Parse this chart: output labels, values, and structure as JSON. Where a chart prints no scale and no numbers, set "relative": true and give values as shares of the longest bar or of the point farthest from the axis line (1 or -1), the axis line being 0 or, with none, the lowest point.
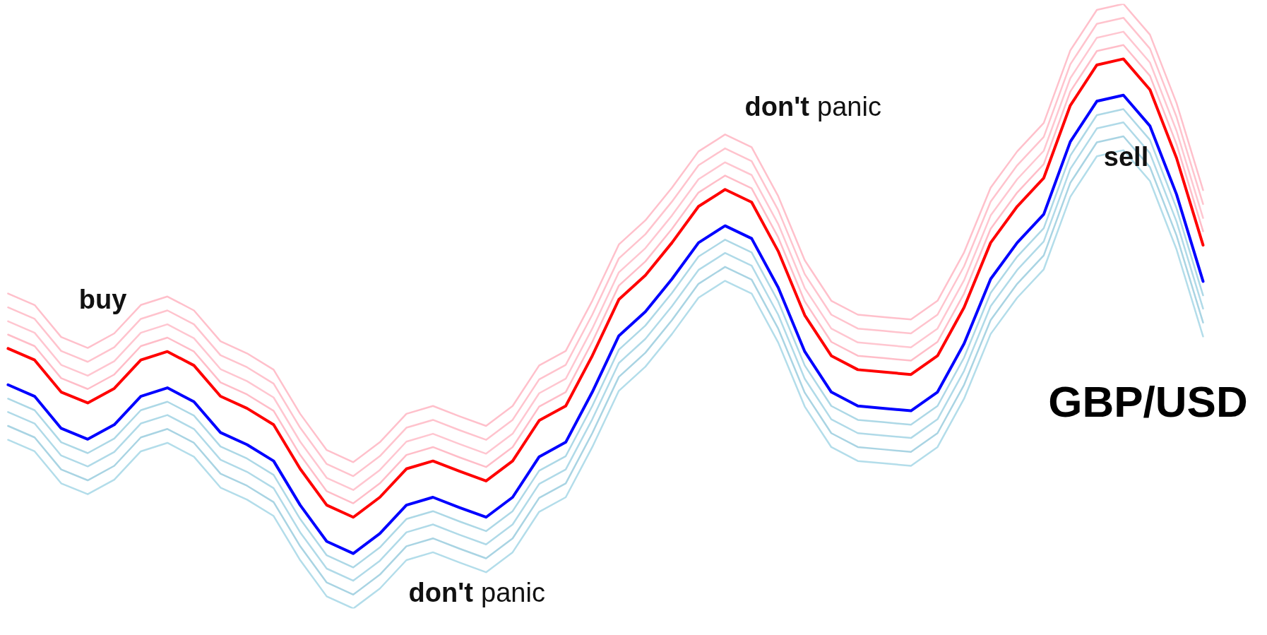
{
  "chart_data": {
    "type": "line",
    "title": "GBP/USD",
    "relative": true,
    "grid": false,
    "categories": [
      null,
      null,
      null,
      null,
      null,
      null,
      null,
      null,
      null,
      null,
      null,
      null,
      null,
      null,
      null,
      null,
      null,
      null,
      null,
      null,
      null,
      null,
      null,
      null,
      null,
      null,
      null,
      null,
      null,
      null,
      null,
      null,
      null,
      null,
      null,
      null,
      null,
      null,
      null,
      null,
      null,
      null,
      null,
      null,
      null,
      null
    ],
    "series": [
      {
        "color": "#ffc0cb",
        "values": [
          0.521,
          0.502,
          0.449,
          0.431,
          0.455,
          0.502,
          0.516,
          0.493,
          0.442,
          0.422,
          0.395,
          0.322,
          0.262,
          0.242,
          0.275,
          0.322,
          0.335,
          0.318,
          0.302,
          0.335,
          0.402,
          0.426,
          0.509,
          0.602,
          0.642,
          0.696,
          0.756,
          0.784,
          0.763,
          0.682,
          0.576,
          0.509,
          0.486,
          0.482,
          0.478,
          0.509,
          0.589,
          0.696,
          0.756,
          0.803,
          0.923,
          0.99,
          1.0,
          0.949,
          0.836,
          0.692
        ]
      },
      {
        "color": "#ffc3cd",
        "values": [
          0.498,
          0.479,
          0.426,
          0.408,
          0.432,
          0.479,
          0.493,
          0.47,
          0.419,
          0.399,
          0.372,
          0.299,
          0.239,
          0.219,
          0.252,
          0.299,
          0.312,
          0.295,
          0.279,
          0.312,
          0.379,
          0.403,
          0.486,
          0.579,
          0.619,
          0.673,
          0.733,
          0.761,
          0.74,
          0.659,
          0.553,
          0.486,
          0.463,
          0.459,
          0.455,
          0.486,
          0.566,
          0.673,
          0.733,
          0.78,
          0.9,
          0.967,
          0.977,
          0.926,
          0.813,
          0.669
        ]
      },
      {
        "color": "#ffc6d0",
        "values": [
          0.475,
          0.456,
          0.403,
          0.385,
          0.409,
          0.456,
          0.47,
          0.447,
          0.396,
          0.376,
          0.349,
          0.276,
          0.216,
          0.196,
          0.229,
          0.276,
          0.289,
          0.272,
          0.256,
          0.289,
          0.356,
          0.38,
          0.463,
          0.556,
          0.596,
          0.65,
          0.71,
          0.738,
          0.717,
          0.636,
          0.53,
          0.463,
          0.44,
          0.436,
          0.432,
          0.463,
          0.543,
          0.65,
          0.71,
          0.757,
          0.877,
          0.944,
          0.954,
          0.903,
          0.79,
          0.646
        ]
      },
      {
        "color": "#ffbdc8",
        "values": [
          0.453,
          0.434,
          0.381,
          0.363,
          0.387,
          0.434,
          0.448,
          0.425,
          0.374,
          0.354,
          0.327,
          0.254,
          0.194,
          0.174,
          0.207,
          0.254,
          0.267,
          0.25,
          0.234,
          0.267,
          0.334,
          0.358,
          0.441,
          0.534,
          0.574,
          0.628,
          0.688,
          0.716,
          0.695,
          0.614,
          0.508,
          0.441,
          0.418,
          0.414,
          0.41,
          0.441,
          0.521,
          0.628,
          0.688,
          0.735,
          0.855,
          0.922,
          0.932,
          0.881,
          0.768,
          0.624
        ]
      },
      {
        "color": "#ff0000",
        "values": [
          0.43,
          0.411,
          0.358,
          0.34,
          0.364,
          0.411,
          0.425,
          0.402,
          0.351,
          0.331,
          0.304,
          0.231,
          0.171,
          0.151,
          0.184,
          0.231,
          0.244,
          0.227,
          0.211,
          0.244,
          0.311,
          0.335,
          0.418,
          0.511,
          0.551,
          0.605,
          0.665,
          0.693,
          0.672,
          0.591,
          0.485,
          0.418,
          0.395,
          0.391,
          0.387,
          0.418,
          0.498,
          0.605,
          0.665,
          0.712,
          0.832,
          0.899,
          0.909,
          0.858,
          0.745,
          0.601
        ]
      },
      {
        "color": "#0000ff",
        "values": [
          0.37,
          0.351,
          0.298,
          0.28,
          0.304,
          0.351,
          0.365,
          0.342,
          0.291,
          0.271,
          0.244,
          0.171,
          0.111,
          0.091,
          0.124,
          0.171,
          0.184,
          0.167,
          0.151,
          0.184,
          0.251,
          0.275,
          0.358,
          0.451,
          0.491,
          0.545,
          0.605,
          0.633,
          0.612,
          0.531,
          0.425,
          0.358,
          0.335,
          0.331,
          0.327,
          0.358,
          0.438,
          0.545,
          0.605,
          0.652,
          0.772,
          0.839,
          0.849,
          0.798,
          0.685,
          0.541
        ]
      },
      {
        "color": "#add8e6",
        "values": [
          0.347,
          0.328,
          0.275,
          0.257,
          0.281,
          0.328,
          0.342,
          0.319,
          0.268,
          0.248,
          0.221,
          0.148,
          0.088,
          0.068,
          0.101,
          0.148,
          0.161,
          0.144,
          0.128,
          0.161,
          0.228,
          0.252,
          0.335,
          0.428,
          0.468,
          0.522,
          0.582,
          0.61,
          0.589,
          0.508,
          0.402,
          0.335,
          0.312,
          0.308,
          0.304,
          0.335,
          0.415,
          0.522,
          0.582,
          0.629,
          0.749,
          0.816,
          0.826,
          0.775,
          0.662,
          0.518
        ]
      },
      {
        "color": "#b0dae8",
        "values": [
          0.325,
          0.306,
          0.253,
          0.235,
          0.259,
          0.306,
          0.32,
          0.297,
          0.246,
          0.226,
          0.199,
          0.126,
          0.066,
          0.046,
          0.079,
          0.126,
          0.139,
          0.122,
          0.106,
          0.139,
          0.206,
          0.23,
          0.313,
          0.406,
          0.446,
          0.5,
          0.56,
          0.588,
          0.567,
          0.486,
          0.38,
          0.313,
          0.29,
          0.286,
          0.282,
          0.313,
          0.393,
          0.5,
          0.56,
          0.607,
          0.727,
          0.794,
          0.804,
          0.753,
          0.64,
          0.496
        ]
      },
      {
        "color": "#a9d4e3",
        "values": [
          0.302,
          0.283,
          0.23,
          0.212,
          0.236,
          0.283,
          0.297,
          0.274,
          0.223,
          0.203,
          0.176,
          0.103,
          0.043,
          0.023,
          0.056,
          0.103,
          0.116,
          0.099,
          0.083,
          0.116,
          0.183,
          0.207,
          0.29,
          0.383,
          0.423,
          0.477,
          0.537,
          0.565,
          0.544,
          0.463,
          0.357,
          0.29,
          0.267,
          0.263,
          0.259,
          0.29,
          0.37,
          0.477,
          0.537,
          0.584,
          0.704,
          0.771,
          0.781,
          0.73,
          0.617,
          0.473
        ]
      },
      {
        "color": "#b3ddea",
        "values": [
          0.279,
          0.26,
          0.207,
          0.189,
          0.213,
          0.26,
          0.274,
          0.251,
          0.2,
          0.18,
          0.153,
          0.08,
          0.02,
          0.0,
          0.033,
          0.08,
          0.093,
          0.076,
          0.06,
          0.093,
          0.16,
          0.184,
          0.267,
          0.36,
          0.4,
          0.454,
          0.514,
          0.542,
          0.521,
          0.44,
          0.334,
          0.267,
          0.244,
          0.24,
          0.236,
          0.267,
          0.347,
          0.454,
          0.514,
          0.561,
          0.681,
          0.748,
          0.758,
          0.707,
          0.594,
          0.45
        ]
      }
    ],
    "annotations": [
      "buy",
      "don't panic",
      "sell",
      "don't panic"
    ]
  }
}
